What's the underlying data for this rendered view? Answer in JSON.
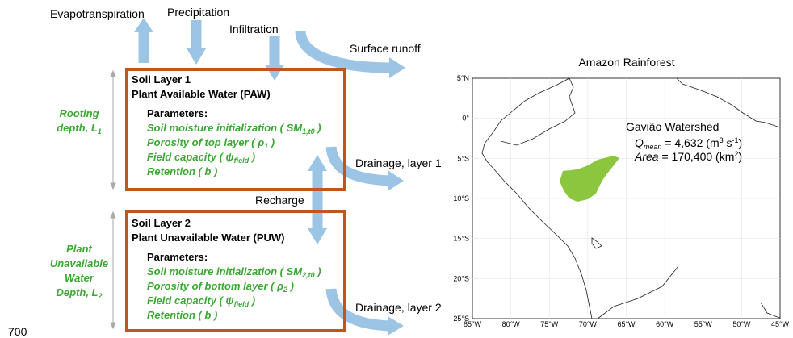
{
  "flux_labels": {
    "evapotranspiration": "Evapotranspiration",
    "precipitation": "Precipitation",
    "infiltration": "Infiltration",
    "surface_runoff": "Surface runoff",
    "drainage_1": "Drainage, layer 1",
    "recharge": "Recharge",
    "drainage_2": "Drainage, layer 2"
  },
  "layers": [
    {
      "title": "Soil Layer 1",
      "subtitle": "Plant Available Water (PAW)",
      "depth": [
        "Rooting",
        "depth, L",
        "1"
      ],
      "parameters_heading": "Parameters:",
      "parameters": [
        [
          "Soil moisture initialization ( SM",
          "1,t0",
          " )"
        ],
        [
          "Porosity of top layer ( ρ",
          "1",
          " )"
        ],
        [
          "Field capacity ( ψ",
          "field",
          " )"
        ],
        [
          "Retention ( b )"
        ]
      ]
    },
    {
      "title": "Soil Layer 2",
      "subtitle": "Plant Unavailable Water (PUW)",
      "depth": [
        "Plant",
        "Unavailable",
        "Water",
        "Depth, L",
        "2"
      ],
      "parameters_heading": "Parameters:",
      "parameters": [
        [
          "Soil moisture initialization ( SM",
          "2,t0",
          " )"
        ],
        [
          "Porosity of bottom layer ( ρ",
          "2",
          " )"
        ],
        [
          "Field capacity ( ψ",
          "field",
          " )"
        ],
        [
          "Retention ( b )"
        ]
      ]
    }
  ],
  "corner_label": "700",
  "map": {
    "title": "Amazon Rainforest",
    "lat_ticks": [
      "5°N",
      "0°",
      "5°S",
      "10°S",
      "15°S",
      "20°S",
      "25°S"
    ],
    "lon_ticks": [
      "85°W",
      "80°W",
      "75°W",
      "70°W",
      "65°W",
      "60°W",
      "55°W",
      "50°W",
      "45°W"
    ],
    "watershed": {
      "name": "Gavião Watershed",
      "q": [
        "Q",
        "mean",
        " = 4,632 (m",
        "3",
        " s",
        "-1",
        ")"
      ],
      "area": [
        "Area",
        " = 170,400 (km",
        "2",
        ")"
      ]
    }
  }
}
